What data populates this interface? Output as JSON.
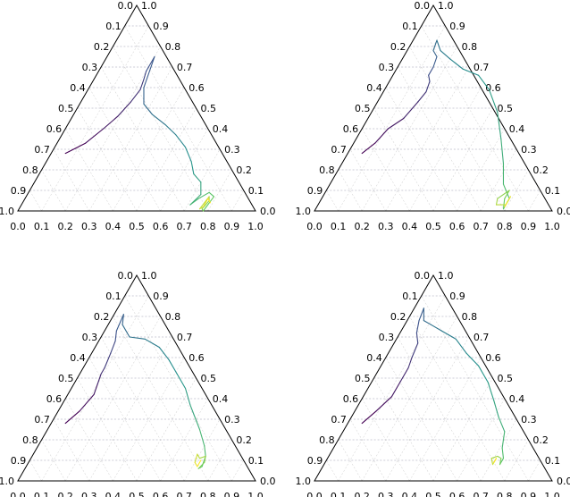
{
  "chart_data": [
    {
      "type": "ternary-line",
      "title": "",
      "grid": true,
      "grid_style": "dashed",
      "left_ticks": [
        "1.0",
        "0.9",
        "0.8",
        "0.7",
        "0.6",
        "0.5",
        "0.4",
        "0.3",
        "0.2",
        "0.1",
        "0.0"
      ],
      "right_ticks": [
        "1.0",
        "0.9",
        "0.8",
        "0.7",
        "0.6",
        "0.5",
        "0.4",
        "0.3",
        "0.2",
        "0.1",
        "0.0"
      ],
      "bottom_ticks": [
        "0.0",
        "0.1",
        "0.2",
        "0.3",
        "0.4",
        "0.5",
        "0.6",
        "0.7",
        "0.8",
        "0.9",
        "1.0"
      ],
      "colormap": [
        "#440154",
        "#3b528b",
        "#21918c",
        "#5ec962",
        "#fde725"
      ],
      "series": [
        {
          "points": [
            [
              0.06,
              0.28,
              0.66
            ],
            [
              0.12,
              0.33,
              0.55
            ],
            [
              0.16,
              0.4,
              0.44
            ],
            [
              0.19,
              0.46,
              0.35
            ],
            [
              0.21,
              0.53,
              0.26
            ],
            [
              0.22,
              0.59,
              0.19
            ],
            [
              0.21,
              0.64,
              0.15
            ],
            [
              0.2,
              0.68,
              0.12
            ],
            [
              0.2,
              0.75,
              0.05
            ],
            [
              0.23,
              0.6,
              0.17
            ],
            [
              0.27,
              0.52,
              0.21
            ],
            [
              0.33,
              0.47,
              0.2
            ],
            [
              0.41,
              0.42,
              0.17
            ],
            [
              0.48,
              0.37,
              0.15
            ],
            [
              0.55,
              0.31,
              0.14
            ],
            [
              0.61,
              0.24,
              0.15
            ],
            [
              0.65,
              0.18,
              0.17
            ],
            [
              0.7,
              0.14,
              0.16
            ],
            [
              0.73,
              0.08,
              0.19
            ],
            [
              0.71,
              0.03,
              0.26
            ],
            [
              0.73,
              0.06,
              0.21
            ],
            [
              0.76,
              0.09,
              0.15
            ],
            [
              0.79,
              0.07,
              0.14
            ],
            [
              0.78,
              0.0,
              0.22
            ],
            [
              0.77,
              0.01,
              0.22
            ],
            [
              0.78,
              0.05,
              0.17
            ],
            [
              0.77,
              0.07,
              0.16
            ],
            [
              0.76,
              0.01,
              0.23
            ],
            [
              0.77,
              0.02,
              0.21
            ],
            [
              0.77,
              0.06,
              0.17
            ],
            [
              0.79,
              0.04,
              0.17
            ]
          ]
        },
        {
          "points": [
            [
              0.06,
              0.28,
              0.66
            ],
            [
              0.09,
              0.33,
              0.58
            ],
            [
              0.11,
              0.4,
              0.49
            ],
            [
              0.15,
              0.45,
              0.4
            ],
            [
              0.17,
              0.53,
              0.3
            ],
            [
              0.18,
              0.58,
              0.24
            ],
            [
              0.17,
              0.63,
              0.2
            ],
            [
              0.15,
              0.66,
              0.19
            ],
            [
              0.15,
              0.7,
              0.15
            ],
            [
              0.14,
              0.75,
              0.11
            ],
            [
              0.11,
              0.78,
              0.11
            ],
            [
              0.1,
              0.83,
              0.07
            ],
            [
              0.14,
              0.78,
              0.08
            ],
            [
              0.2,
              0.74,
              0.06
            ],
            [
              0.28,
              0.69,
              0.03
            ],
            [
              0.36,
              0.66,
              -0.02
            ],
            [
              0.44,
              0.59,
              -0.03
            ],
            [
              0.53,
              0.48,
              -0.01
            ],
            [
              0.61,
              0.35,
              0.04
            ],
            [
              0.68,
              0.23,
              0.09
            ],
            [
              0.73,
              0.13,
              0.14
            ],
            [
              0.79,
              0.06,
              0.15
            ],
            [
              0.79,
              0.01,
              0.2
            ],
            [
              0.77,
              0.06,
              0.17
            ],
            [
              0.77,
              0.1,
              0.13
            ],
            [
              0.74,
              0.06,
              0.2
            ],
            [
              0.75,
              0.03,
              0.22
            ],
            [
              0.79,
              0.03,
              0.18
            ],
            [
              0.79,
              0.07,
              0.14
            ],
            [
              0.79,
              0.04,
              0.17
            ],
            [
              0.79,
              0.02,
              0.19
            ]
          ]
        },
        {
          "points": [
            [
              0.06,
              0.28,
              0.66
            ],
            [
              0.09,
              0.34,
              0.57
            ],
            [
              0.11,
              0.42,
              0.47
            ],
            [
              0.1,
              0.47,
              0.43
            ],
            [
              0.09,
              0.52,
              0.39
            ],
            [
              0.09,
              0.55,
              0.36
            ],
            [
              0.08,
              0.62,
              0.3
            ],
            [
              0.07,
              0.68,
              0.25
            ],
            [
              0.05,
              0.73,
              0.22
            ],
            [
              0.04,
              0.81,
              0.15
            ],
            [
              0.06,
              0.76,
              0.18
            ],
            [
              0.12,
              0.7,
              0.18
            ],
            [
              0.19,
              0.69,
              0.12
            ],
            [
              0.27,
              0.65,
              0.08
            ],
            [
              0.34,
              0.59,
              0.07
            ],
            [
              0.41,
              0.52,
              0.07
            ],
            [
              0.48,
              0.45,
              0.07
            ],
            [
              0.54,
              0.37,
              0.09
            ],
            [
              0.59,
              0.31,
              0.1
            ],
            [
              0.64,
              0.25,
              0.11
            ],
            [
              0.7,
              0.17,
              0.13
            ],
            [
              0.73,
              0.12,
              0.15
            ],
            [
              0.74,
              0.07,
              0.19
            ],
            [
              0.73,
              0.06,
              0.21
            ],
            [
              0.74,
              0.09,
              0.17
            ],
            [
              0.73,
              0.12,
              0.15
            ],
            [
              0.71,
              0.11,
              0.18
            ],
            [
              0.69,
              0.13,
              0.18
            ],
            [
              0.7,
              0.09,
              0.21
            ],
            [
              0.72,
              0.07,
              0.21
            ],
            [
              0.72,
              0.1,
              0.18
            ]
          ]
        },
        {
          "points": [
            [
              0.06,
              0.28,
              0.66
            ],
            [
              0.09,
              0.34,
              0.57
            ],
            [
              0.12,
              0.41,
              0.47
            ],
            [
              0.12,
              0.48,
              0.4
            ],
            [
              0.12,
              0.55,
              0.33
            ],
            [
              0.11,
              0.6,
              0.29
            ],
            [
              0.1,
              0.67,
              0.23
            ],
            [
              0.07,
              0.72,
              0.21
            ],
            [
              0.05,
              0.78,
              0.17
            ],
            [
              0.04,
              0.84,
              0.12
            ],
            [
              0.07,
              0.78,
              0.15
            ],
            [
              0.11,
              0.76,
              0.13
            ],
            [
              0.17,
              0.73,
              0.1
            ],
            [
              0.25,
              0.69,
              0.06
            ],
            [
              0.33,
              0.62,
              0.05
            ],
            [
              0.41,
              0.56,
              0.03
            ],
            [
              0.49,
              0.48,
              0.03
            ],
            [
              0.56,
              0.39,
              0.05
            ],
            [
              0.62,
              0.31,
              0.07
            ],
            [
              0.68,
              0.24,
              0.08
            ],
            [
              0.71,
              0.16,
              0.13
            ],
            [
              0.74,
              0.11,
              0.15
            ],
            [
              0.74,
              0.08,
              0.18
            ],
            [
              0.74,
              0.08,
              0.18
            ],
            [
              0.73,
              0.11,
              0.16
            ],
            [
              0.71,
              0.12,
              0.17
            ],
            [
              0.69,
              0.11,
              0.2
            ],
            [
              0.71,
              0.08,
              0.21
            ],
            [
              0.71,
              0.09,
              0.2
            ],
            [
              0.71,
              0.11,
              0.18
            ],
            [
              0.71,
              0.09,
              0.2
            ]
          ]
        }
      ]
    }
  ]
}
